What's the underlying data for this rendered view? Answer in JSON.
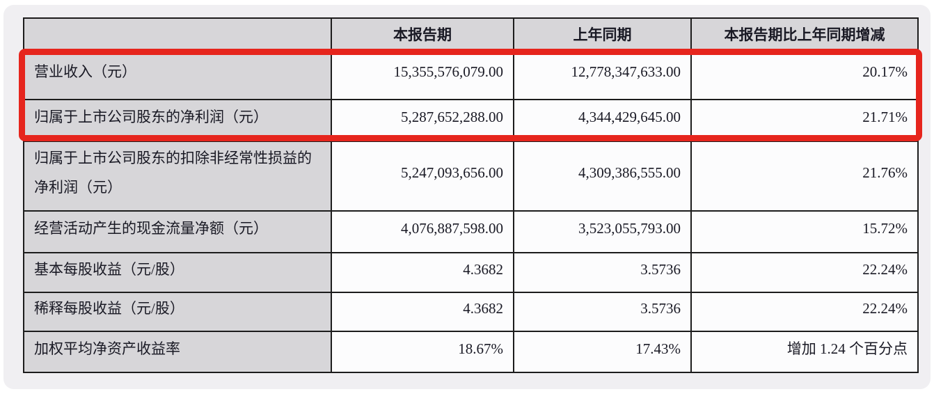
{
  "page": {
    "card_background": "#f0eff2",
    "highlight_color": "#e6251d"
  },
  "table": {
    "headers": {
      "indicator": "",
      "period_current": "本报告期",
      "period_prior": "上年同期",
      "change": "本报告期比上年同期增减"
    },
    "rows": [
      {
        "label": "营业收入（元）",
        "current": "15,355,576,079.00",
        "prior": "12,778,347,633.00",
        "change": "20.17%",
        "highlighted": true
      },
      {
        "label": "归属于上市公司股东的净利润（元）",
        "current": "5,287,652,288.00",
        "prior": "4,344,429,645.00",
        "change": "21.71%",
        "highlighted": true
      },
      {
        "label": "归属于上市公司股东的扣除非经常性损益的净利润（元）",
        "current": "5,247,093,656.00",
        "prior": "4,309,386,555.00",
        "change": "21.76%",
        "highlighted": false
      },
      {
        "label": "经营活动产生的现金流量净额（元）",
        "current": "4,076,887,598.00",
        "prior": "3,523,055,793.00",
        "change": "15.72%",
        "highlighted": false
      },
      {
        "label": "基本每股收益（元/股）",
        "current": "4.3682",
        "prior": "3.5736",
        "change": "22.24%",
        "highlighted": false
      },
      {
        "label": "稀释每股收益（元/股）",
        "current": "4.3682",
        "prior": "3.5736",
        "change": "22.24%",
        "highlighted": false
      },
      {
        "label": "加权平均净资产收益率",
        "current": "18.67%",
        "prior": "17.43%",
        "change": "增加 1.24 个百分点",
        "highlighted": false
      }
    ]
  }
}
